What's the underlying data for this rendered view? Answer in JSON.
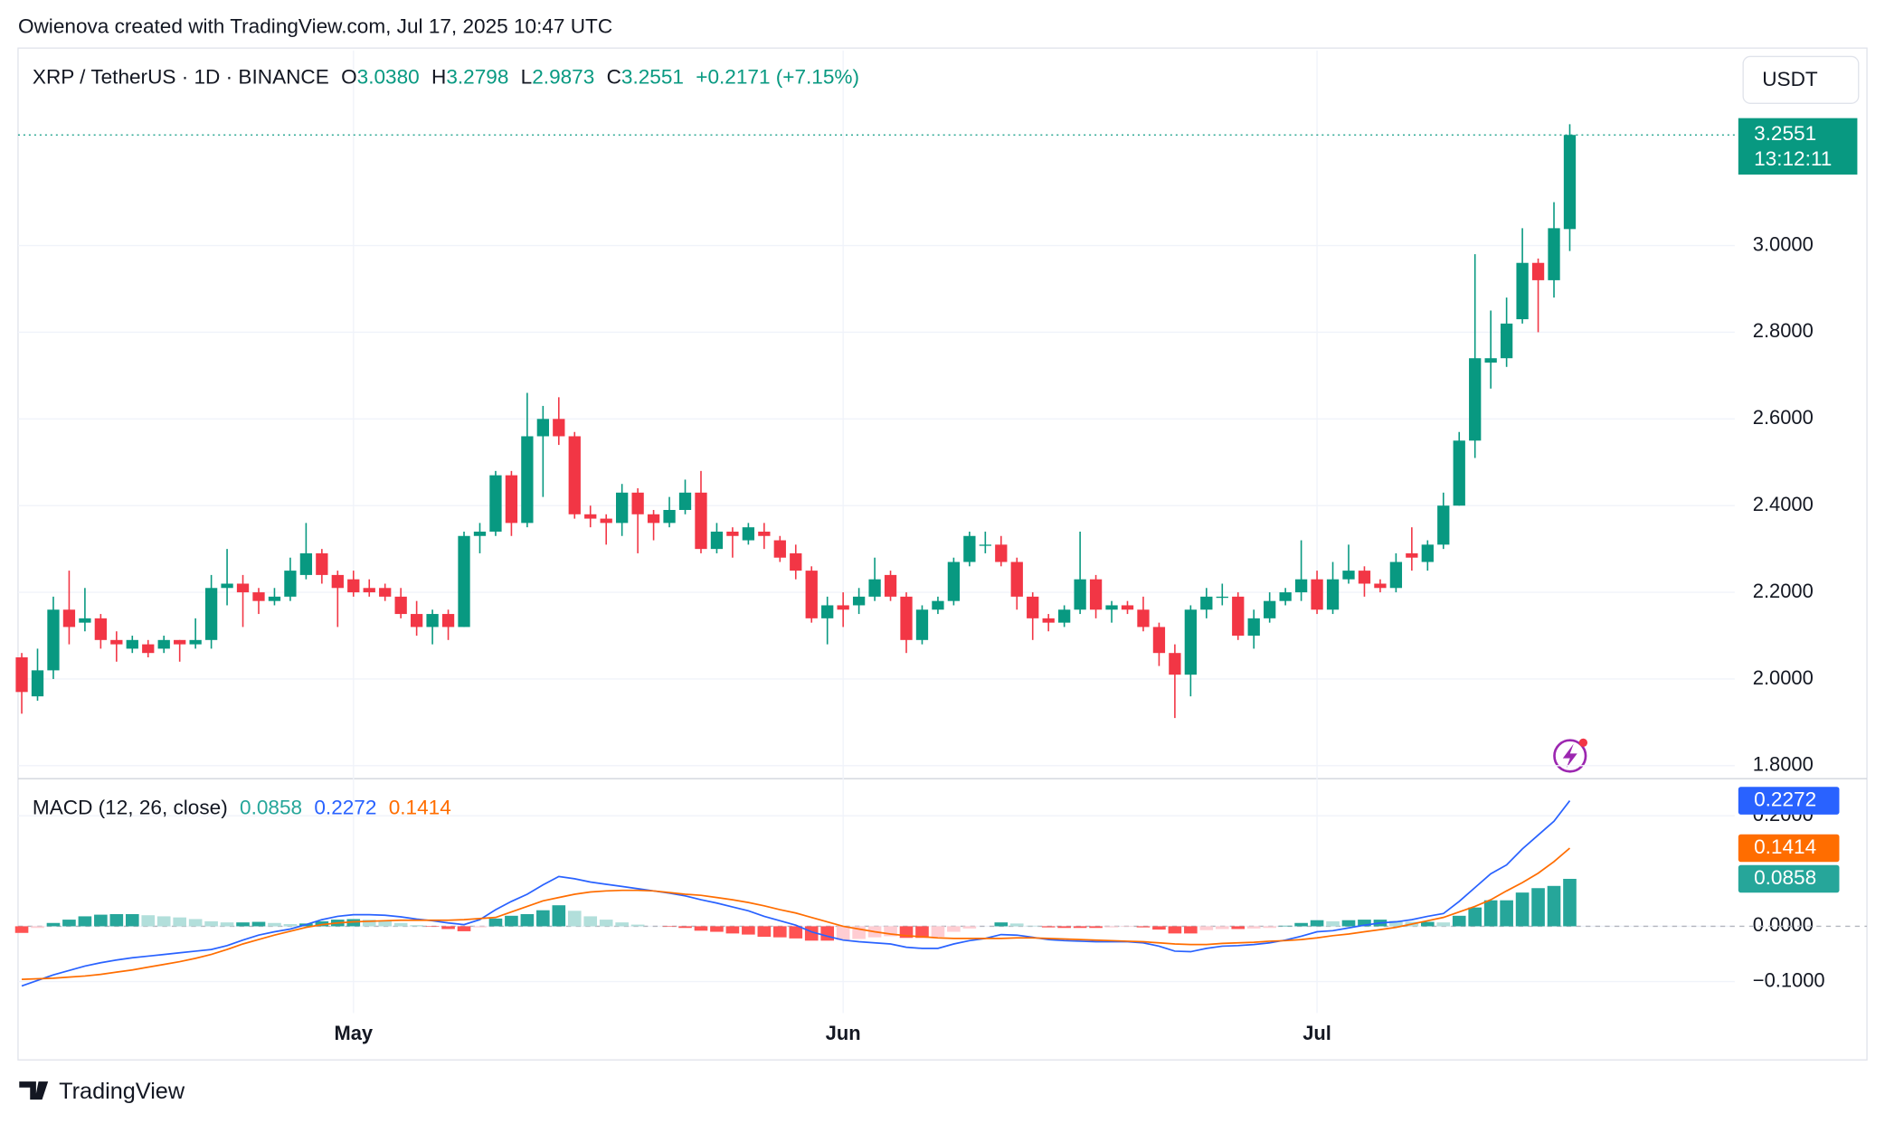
{
  "attribution": "Owienova created with TradingView.com, Jul 17, 2025 10:47 UTC",
  "currency": "USDT",
  "footer": "TradingView",
  "chart_data": [
    {
      "type": "candlestick",
      "title": "XRP / TetherUS · 1D · BINANCE",
      "ohlc_legend": [
        {
          "key": "O",
          "label": "3.0380"
        },
        {
          "key": "H",
          "label": "3.2798"
        },
        {
          "key": "L",
          "label": "2.9873"
        },
        {
          "key": "C",
          "label": "3.2551"
        }
      ],
      "change_label": "+0.2171 (+7.15%)",
      "categories": [
        null,
        null,
        null,
        null,
        null,
        null,
        null,
        null,
        null,
        null,
        null,
        null,
        null,
        null,
        null,
        null,
        null,
        null,
        null,
        null,
        null,
        "May",
        null,
        null,
        null,
        null,
        null,
        null,
        null,
        null,
        null,
        null,
        null,
        null,
        null,
        null,
        null,
        null,
        null,
        null,
        null,
        null,
        null,
        null,
        null,
        null,
        null,
        null,
        null,
        null,
        null,
        null,
        "Jun",
        null,
        null,
        null,
        null,
        null,
        null,
        null,
        null,
        null,
        null,
        null,
        null,
        null,
        null,
        null,
        null,
        null,
        null,
        null,
        null,
        null,
        null,
        null,
        null,
        null,
        null,
        null,
        null,
        null,
        "Jul",
        null,
        null,
        null,
        null,
        null,
        null,
        null,
        null,
        null,
        null,
        null,
        null,
        null,
        null,
        null,
        null
      ],
      "open": [
        2.05,
        1.96,
        2.02,
        2.16,
        2.13,
        2.14,
        2.09,
        2.07,
        2.08,
        2.07,
        2.09,
        2.08,
        2.09,
        2.21,
        2.22,
        2.2,
        2.18,
        2.19,
        2.24,
        2.29,
        2.24,
        2.23,
        2.21,
        2.21,
        2.19,
        2.15,
        2.12,
        2.15,
        2.12,
        2.33,
        2.34,
        2.47,
        2.36,
        2.56,
        2.6,
        2.56,
        2.38,
        2.37,
        2.36,
        2.43,
        2.38,
        2.36,
        2.39,
        2.43,
        2.3,
        2.34,
        2.32,
        2.34,
        2.32,
        2.29,
        2.25,
        2.14,
        2.17,
        2.17,
        2.19,
        2.24,
        2.19,
        2.09,
        2.16,
        2.18,
        2.27,
        2.31,
        2.31,
        2.27,
        2.19,
        2.14,
        2.13,
        2.16,
        2.23,
        2.16,
        2.17,
        2.16,
        2.12,
        2.06,
        2.01,
        2.16,
        2.19,
        2.19,
        2.1,
        2.14,
        2.18,
        2.2,
        2.23,
        2.16,
        2.23,
        2.25,
        2.22,
        2.21,
        2.29,
        2.27,
        2.31,
        2.4,
        2.55,
        2.73,
        2.74,
        2.83,
        2.96,
        2.92,
        3.038
      ],
      "high": [
        2.06,
        2.07,
        2.19,
        2.25,
        2.21,
        2.15,
        2.11,
        2.1,
        2.09,
        2.1,
        2.09,
        2.14,
        2.24,
        2.3,
        2.24,
        2.21,
        2.21,
        2.28,
        2.36,
        2.3,
        2.25,
        2.25,
        2.23,
        2.22,
        2.21,
        2.18,
        2.16,
        2.16,
        2.34,
        2.36,
        2.48,
        2.48,
        2.66,
        2.63,
        2.65,
        2.57,
        2.4,
        2.38,
        2.45,
        2.44,
        2.39,
        2.42,
        2.46,
        2.48,
        2.36,
        2.35,
        2.36,
        2.36,
        2.33,
        2.31,
        2.26,
        2.19,
        2.2,
        2.21,
        2.28,
        2.25,
        2.2,
        2.17,
        2.19,
        2.28,
        2.34,
        2.34,
        2.33,
        2.28,
        2.2,
        2.15,
        2.17,
        2.34,
        2.24,
        2.18,
        2.18,
        2.19,
        2.13,
        2.08,
        2.17,
        2.21,
        2.22,
        2.2,
        2.16,
        2.2,
        2.21,
        2.32,
        2.25,
        2.27,
        2.31,
        2.26,
        2.23,
        2.29,
        2.35,
        2.32,
        2.43,
        2.57,
        2.98,
        2.85,
        2.88,
        3.04,
        2.97,
        3.1,
        3.2798
      ],
      "low": [
        1.92,
        1.95,
        2.0,
        2.08,
        2.11,
        2.07,
        2.04,
        2.06,
        2.05,
        2.06,
        2.04,
        2.07,
        2.07,
        2.17,
        2.12,
        2.15,
        2.17,
        2.18,
        2.23,
        2.22,
        2.12,
        2.19,
        2.19,
        2.18,
        2.14,
        2.1,
        2.08,
        2.09,
        2.12,
        2.29,
        2.33,
        2.33,
        2.35,
        2.42,
        2.54,
        2.37,
        2.35,
        2.31,
        2.33,
        2.29,
        2.32,
        2.35,
        2.38,
        2.29,
        2.29,
        2.28,
        2.31,
        2.3,
        2.27,
        2.23,
        2.13,
        2.08,
        2.12,
        2.15,
        2.18,
        2.18,
        2.06,
        2.08,
        2.15,
        2.17,
        2.26,
        2.29,
        2.26,
        2.16,
        2.09,
        2.11,
        2.12,
        2.15,
        2.14,
        2.13,
        2.15,
        2.11,
        2.03,
        1.91,
        1.96,
        2.14,
        2.17,
        2.09,
        2.07,
        2.13,
        2.17,
        2.18,
        2.15,
        2.15,
        2.22,
        2.19,
        2.2,
        2.2,
        2.25,
        2.25,
        2.3,
        2.4,
        2.51,
        2.67,
        2.72,
        2.82,
        2.8,
        2.88,
        2.9873
      ],
      "close": [
        1.97,
        2.02,
        2.16,
        2.12,
        2.14,
        2.09,
        2.08,
        2.09,
        2.06,
        2.09,
        2.08,
        2.09,
        2.21,
        2.22,
        2.2,
        2.18,
        2.19,
        2.25,
        2.29,
        2.24,
        2.21,
        2.2,
        2.2,
        2.19,
        2.15,
        2.12,
        2.15,
        2.12,
        2.33,
        2.34,
        2.47,
        2.36,
        2.56,
        2.6,
        2.56,
        2.38,
        2.37,
        2.36,
        2.43,
        2.38,
        2.36,
        2.39,
        2.43,
        2.3,
        2.34,
        2.33,
        2.35,
        2.33,
        2.28,
        2.25,
        2.14,
        2.17,
        2.16,
        2.19,
        2.23,
        2.19,
        2.09,
        2.16,
        2.18,
        2.27,
        2.33,
        2.31,
        2.27,
        2.19,
        2.14,
        2.13,
        2.16,
        2.23,
        2.16,
        2.17,
        2.16,
        2.12,
        2.06,
        2.01,
        2.16,
        2.19,
        2.19,
        2.1,
        2.14,
        2.18,
        2.2,
        2.23,
        2.16,
        2.23,
        2.25,
        2.22,
        2.21,
        2.27,
        2.28,
        2.31,
        2.4,
        2.55,
        2.74,
        2.74,
        2.82,
        2.96,
        2.92,
        3.04,
        3.2551
      ],
      "up_color": "#089981",
      "down_color": "#f23645",
      "ylim": [
        1.77,
        3.45
      ],
      "yticks": [
        {
          "value": 1.8,
          "label": "1.8000"
        },
        {
          "value": 2.0,
          "label": "2.0000"
        },
        {
          "value": 2.2,
          "label": "2.2000"
        },
        {
          "value": 2.4,
          "label": "2.4000"
        },
        {
          "value": 2.6,
          "label": "2.6000"
        },
        {
          "value": 2.8,
          "label": "2.8000"
        },
        {
          "value": 3.0,
          "label": "3.0000"
        }
      ],
      "last_price": {
        "value": 3.2551,
        "label": "3.2551"
      },
      "countdown": "13:12:11",
      "grid": true
    },
    {
      "type": "macd",
      "title": "MACD (12, 26, close)",
      "series": [
        {
          "kind": "histogram",
          "color": "#26a69a",
          "colors": [
            "#26a69a",
            "#b2dfdb",
            "#ff5252",
            "#ffcdd2"
          ],
          "value_label": "0.0858",
          "values": [
            -0.012,
            -0.003,
            0.006,
            0.012,
            0.018,
            0.021,
            0.022,
            0.022,
            0.02,
            0.018,
            0.016,
            0.013,
            0.009,
            0.007,
            0.007,
            0.008,
            0.006,
            0.004,
            0.005,
            0.009,
            0.012,
            0.013,
            0.012,
            0.01,
            0.006,
            0.002,
            -0.001,
            -0.005,
            -0.009,
            -0.002,
            0.014,
            0.019,
            0.022,
            0.029,
            0.038,
            0.028,
            0.018,
            0.012,
            0.007,
            0.003,
            0.0,
            -0.001,
            -0.003,
            -0.008,
            -0.01,
            -0.013,
            -0.015,
            -0.019,
            -0.02,
            -0.022,
            -0.026,
            -0.026,
            -0.025,
            -0.023,
            -0.02,
            -0.018,
            -0.021,
            -0.021,
            -0.019,
            -0.01,
            -0.004,
            0.0,
            0.007,
            0.005,
            0.001,
            -0.002,
            -0.003,
            -0.003,
            -0.003,
            -0.002,
            -0.001,
            -0.002,
            -0.006,
            -0.013,
            -0.013,
            -0.007,
            -0.005,
            -0.005,
            -0.004,
            -0.003,
            0.001,
            0.006,
            0.011,
            0.009,
            0.011,
            0.012,
            0.012,
            0.01,
            0.008,
            0.008,
            0.007,
            0.019,
            0.034,
            0.047,
            0.047,
            0.061,
            0.069,
            0.073,
            0.0858
          ]
        },
        {
          "kind": "line",
          "color": "#2962ff",
          "value_label": "0.2272",
          "values": [
            -0.108,
            -0.098,
            -0.088,
            -0.08,
            -0.072,
            -0.066,
            -0.061,
            -0.057,
            -0.054,
            -0.051,
            -0.048,
            -0.045,
            -0.042,
            -0.035,
            -0.025,
            -0.016,
            -0.01,
            -0.005,
            0.003,
            0.012,
            0.018,
            0.021,
            0.021,
            0.02,
            0.017,
            0.013,
            0.01,
            0.006,
            0.003,
            0.012,
            0.03,
            0.045,
            0.058,
            0.075,
            0.09,
            0.086,
            0.08,
            0.076,
            0.072,
            0.068,
            0.064,
            0.06,
            0.055,
            0.048,
            0.042,
            0.035,
            0.028,
            0.018,
            0.01,
            0.002,
            -0.01,
            -0.018,
            -0.025,
            -0.028,
            -0.03,
            -0.032,
            -0.038,
            -0.04,
            -0.04,
            -0.032,
            -0.026,
            -0.022,
            -0.015,
            -0.016,
            -0.02,
            -0.024,
            -0.026,
            -0.027,
            -0.028,
            -0.028,
            -0.028,
            -0.03,
            -0.036,
            -0.045,
            -0.046,
            -0.04,
            -0.036,
            -0.035,
            -0.033,
            -0.03,
            -0.025,
            -0.018,
            -0.01,
            -0.008,
            -0.003,
            0.002,
            0.006,
            0.008,
            0.012,
            0.018,
            0.023,
            0.045,
            0.07,
            0.095,
            0.111,
            0.14,
            0.165,
            0.19,
            0.2272
          ]
        },
        {
          "kind": "line",
          "color": "#ff6d00",
          "value_label": "0.1414",
          "values": [
            -0.096,
            -0.095,
            -0.094,
            -0.092,
            -0.09,
            -0.087,
            -0.083,
            -0.079,
            -0.074,
            -0.069,
            -0.064,
            -0.058,
            -0.051,
            -0.042,
            -0.032,
            -0.024,
            -0.016,
            -0.009,
            -0.002,
            0.003,
            0.006,
            0.008,
            0.009,
            0.01,
            0.011,
            0.011,
            0.011,
            0.011,
            0.012,
            0.014,
            0.016,
            0.026,
            0.036,
            0.046,
            0.052,
            0.058,
            0.062,
            0.064,
            0.065,
            0.065,
            0.064,
            0.061,
            0.058,
            0.056,
            0.052,
            0.048,
            0.043,
            0.037,
            0.03,
            0.024,
            0.016,
            0.008,
            0.0,
            -0.005,
            -0.01,
            -0.014,
            -0.017,
            -0.019,
            -0.021,
            -0.022,
            -0.022,
            -0.022,
            -0.022,
            -0.021,
            -0.021,
            -0.022,
            -0.023,
            -0.024,
            -0.025,
            -0.026,
            -0.027,
            -0.028,
            -0.03,
            -0.032,
            -0.033,
            -0.033,
            -0.031,
            -0.03,
            -0.029,
            -0.027,
            -0.026,
            -0.024,
            -0.021,
            -0.017,
            -0.014,
            -0.01,
            -0.006,
            -0.002,
            0.004,
            0.01,
            0.016,
            0.026,
            0.036,
            0.048,
            0.064,
            0.079,
            0.096,
            0.117,
            0.1414
          ]
        }
      ],
      "ylim": [
        -0.157,
        0.267
      ],
      "yticks": [
        {
          "value": -0.1,
          "label": "−0.1000"
        },
        {
          "value": 0,
          "label": "0.0000"
        },
        {
          "value": 0.2,
          "label": "0.2000"
        }
      ]
    }
  ]
}
